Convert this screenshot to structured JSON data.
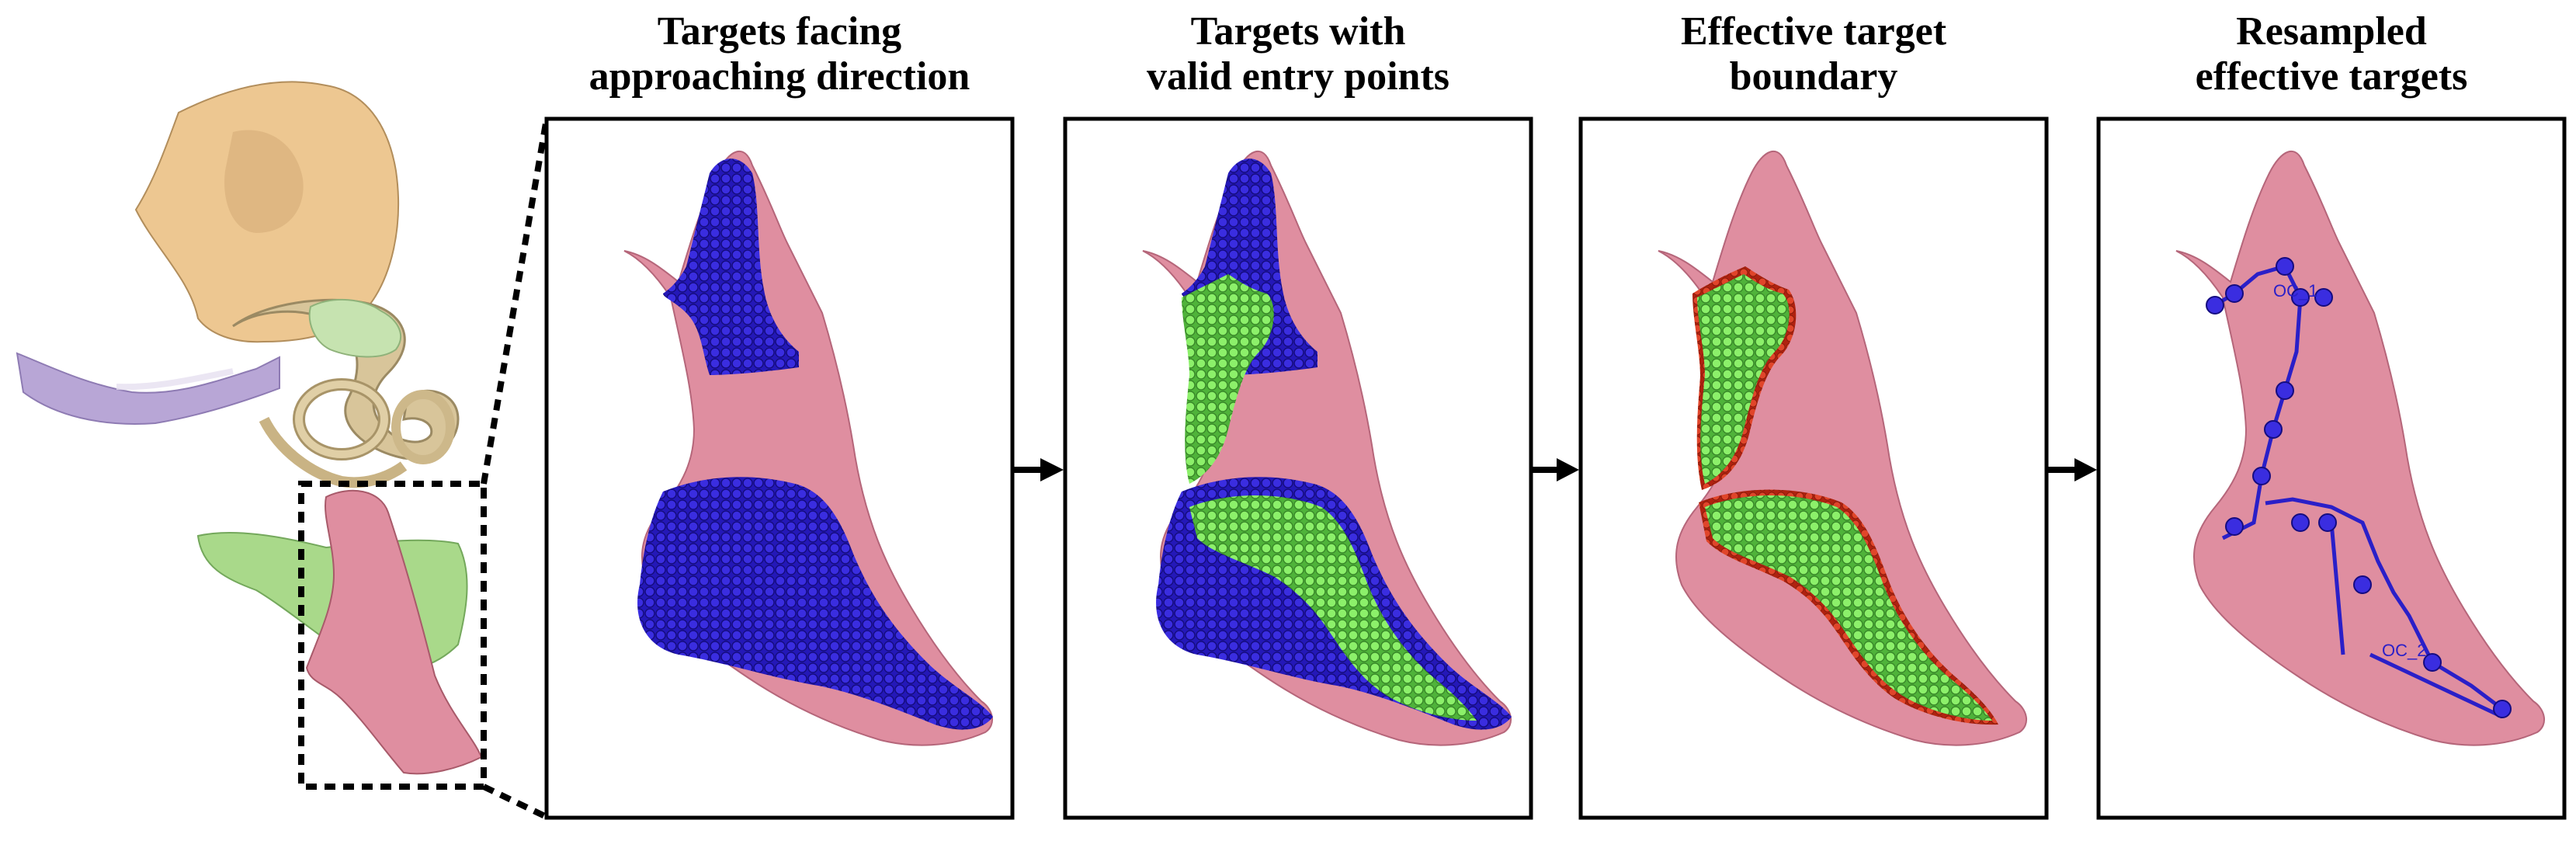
{
  "panels": [
    {
      "id": "p1",
      "title_lines": [
        "Targets facing",
        "approaching direction"
      ]
    },
    {
      "id": "p2",
      "title_lines": [
        "Targets with",
        "valid entry points"
      ]
    },
    {
      "id": "p3",
      "title_lines": [
        "Effective target",
        "boundary"
      ]
    },
    {
      "id": "p4",
      "title_lines": [
        "Resampled",
        "effective targets"
      ]
    }
  ],
  "trajectory_labels": [
    "OC_1",
    "OC_2"
  ],
  "colors": {
    "bone": "#e8c594",
    "cochlea": "#d8c49c",
    "nerve": "#b8a6d6",
    "green_structure": "#a9d98a",
    "target_surface": "#d98595",
    "blue_targets": "#2a1fc8",
    "green_targets": "#7de35b",
    "red_boundary": "#d9341c",
    "frame": "#000000"
  }
}
